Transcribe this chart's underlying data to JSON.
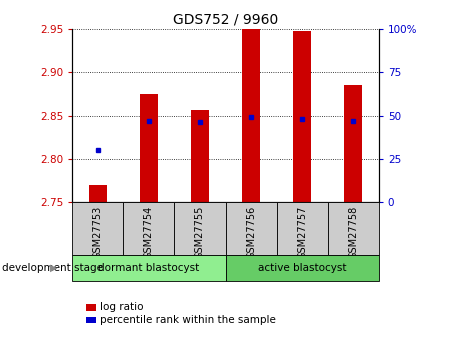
{
  "title": "GDS752 / 9960",
  "samples": [
    "GSM27753",
    "GSM27754",
    "GSM27755",
    "GSM27756",
    "GSM27757",
    "GSM27758"
  ],
  "log_ratios": [
    2.77,
    2.875,
    2.856,
    2.95,
    2.948,
    2.885
  ],
  "percentile_ranks": [
    30,
    47,
    46,
    49,
    48,
    47
  ],
  "baseline": 2.75,
  "ylim_left": [
    2.75,
    2.95
  ],
  "ylim_right": [
    0,
    100
  ],
  "yticks_left": [
    2.75,
    2.8,
    2.85,
    2.9,
    2.95
  ],
  "yticks_right": [
    0,
    25,
    50,
    75,
    100
  ],
  "bar_color": "#cc0000",
  "percentile_color": "#0000cc",
  "grid_color": "#000000",
  "groups": [
    {
      "label": "dormant blastocyst",
      "indices": [
        0,
        1,
        2
      ],
      "color": "#90ee90"
    },
    {
      "label": "active blastocyst",
      "indices": [
        3,
        4,
        5
      ],
      "color": "#66cc66"
    }
  ],
  "group_label": "development stage",
  "legend_log_ratio": "log ratio",
  "legend_percentile": "percentile rank within the sample",
  "bar_width": 0.35,
  "tick_label_color_left": "#cc0000",
  "tick_label_color_right": "#0000cc",
  "bg_color": "#ffffff",
  "sample_box_color": "#cccccc",
  "title_fontsize": 10,
  "axis_fontsize": 7.5,
  "xlabel_fontsize": 7
}
